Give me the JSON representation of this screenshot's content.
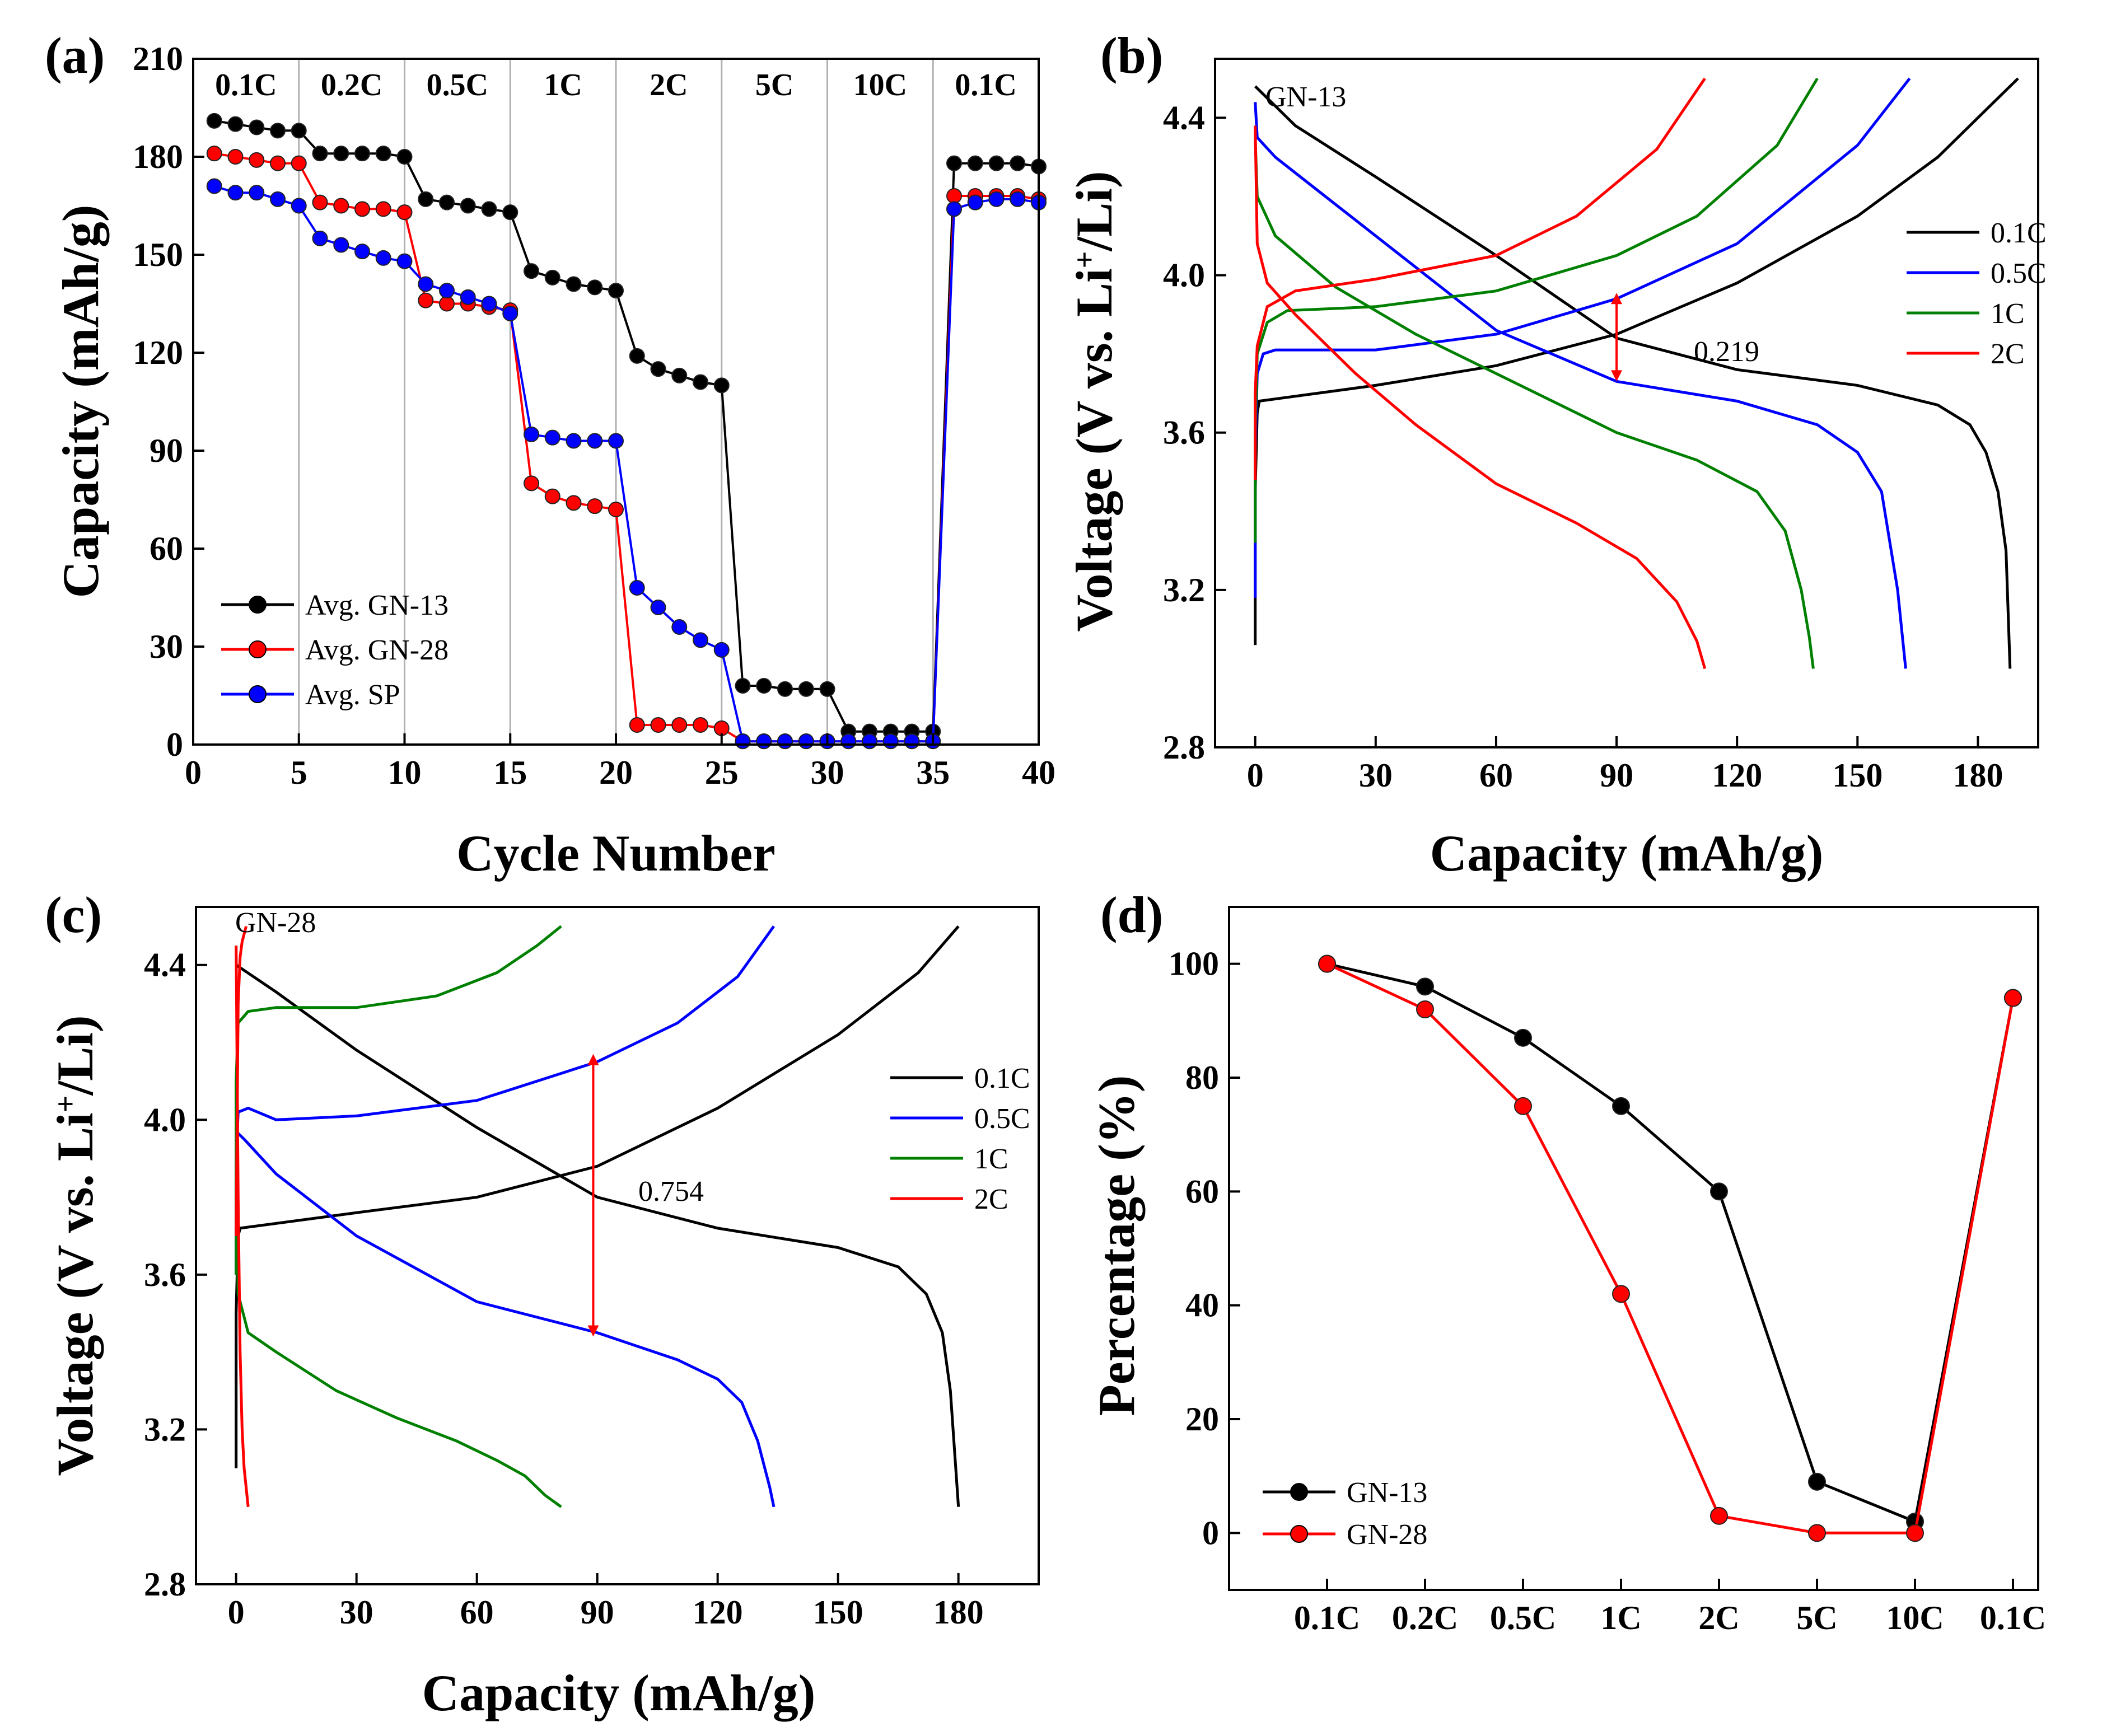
{
  "chart_data": [
    {
      "panel": "(a)",
      "type": "line",
      "xlabel": "Cycle Number",
      "ylabel": "Capacity (mAh/g)",
      "xlim": [
        0,
        40
      ],
      "ylim": [
        0,
        210
      ],
      "xticks": [
        "0",
        "5",
        "10",
        "15",
        "20",
        "25",
        "30",
        "35",
        "40"
      ],
      "yticks": [
        "0",
        "30",
        "60",
        "90",
        "120",
        "150",
        "180",
        "210"
      ],
      "rate_labels": [
        "0.1C",
        "0.2C",
        "0.5C",
        "1C",
        "2C",
        "5C",
        "10C",
        "0.1C"
      ],
      "dividers": [
        5,
        10,
        15,
        20,
        25,
        30,
        35
      ],
      "legend_position": "bottom-left",
      "series": [
        {
          "name": "Avg. GN-13",
          "color": "#000000",
          "x": [
            1,
            2,
            3,
            4,
            5,
            6,
            7,
            8,
            9,
            10,
            11,
            12,
            13,
            14,
            15,
            16,
            17,
            18,
            19,
            20,
            21,
            22,
            23,
            24,
            25,
            26,
            27,
            28,
            29,
            30,
            31,
            32,
            33,
            34,
            35,
            36,
            37,
            38,
            39,
            40
          ],
          "y": [
            191,
            190,
            189,
            188,
            188,
            181,
            181,
            181,
            181,
            180,
            167,
            166,
            165,
            164,
            163,
            145,
            143,
            141,
            140,
            139,
            119,
            115,
            113,
            111,
            110,
            18,
            18,
            17,
            17,
            17,
            4,
            4,
            4,
            4,
            4,
            178,
            178,
            178,
            178,
            177
          ]
        },
        {
          "name": "Avg. GN-28",
          "color": "#ff0000",
          "x": [
            1,
            2,
            3,
            4,
            5,
            6,
            7,
            8,
            9,
            10,
            11,
            12,
            13,
            14,
            15,
            16,
            17,
            18,
            19,
            20,
            21,
            22,
            23,
            24,
            25,
            26,
            27,
            28,
            29,
            30,
            31,
            32,
            33,
            34,
            35,
            36,
            37,
            38,
            39,
            40
          ],
          "y": [
            181,
            180,
            179,
            178,
            178,
            166,
            165,
            164,
            164,
            163,
            136,
            135,
            135,
            134,
            133,
            80,
            76,
            74,
            73,
            72,
            6,
            6,
            6,
            6,
            5,
            1,
            1,
            1,
            1,
            1,
            1,
            1,
            1,
            1,
            1,
            168,
            168,
            168,
            168,
            167
          ]
        },
        {
          "name": "Avg. SP",
          "color": "#0000ff",
          "x": [
            1,
            2,
            3,
            4,
            5,
            6,
            7,
            8,
            9,
            10,
            11,
            12,
            13,
            14,
            15,
            16,
            17,
            18,
            19,
            20,
            21,
            22,
            23,
            24,
            25,
            26,
            27,
            28,
            29,
            30,
            31,
            32,
            33,
            34,
            35,
            36,
            37,
            38,
            39,
            40
          ],
          "y": [
            171,
            169,
            169,
            167,
            165,
            155,
            153,
            151,
            149,
            148,
            141,
            139,
            137,
            135,
            132,
            95,
            94,
            93,
            93,
            93,
            48,
            42,
            36,
            32,
            29,
            1,
            1,
            1,
            1,
            1,
            1,
            1,
            1,
            1,
            1,
            164,
            166,
            167,
            167,
            166
          ]
        }
      ]
    },
    {
      "panel": "(b)",
      "type": "line",
      "annotation": "GN-13",
      "gap_label": "0.219",
      "xlabel": "Capacity (mAh/g)",
      "ylabel_prefix": "Voltage (V vs. Li",
      "ylabel_sup": "+",
      "ylabel_suffix": "/Li)",
      "xlim": [
        -10,
        195
      ],
      "ylim": [
        2.8,
        4.55
      ],
      "xticks": [
        "0",
        "30",
        "60",
        "90",
        "120",
        "150",
        "180"
      ],
      "yticks": [
        "2.8",
        "3.2",
        "3.6",
        "4.0",
        "4.4"
      ],
      "legend_position": "right",
      "series": [
        {
          "name": "0.1C",
          "color": "#000000",
          "charge_x": [
            0,
            0,
            0.5,
            1,
            30,
            60,
            90,
            120,
            150,
            170,
            190
          ],
          "charge_y": [
            3.06,
            3.45,
            3.65,
            3.68,
            3.72,
            3.77,
            3.85,
            3.98,
            4.15,
            4.3,
            4.5
          ],
          "discharge_x": [
            0,
            10,
            30,
            60,
            90,
            120,
            150,
            170,
            178,
            182,
            185,
            187,
            188
          ],
          "discharge_y": [
            4.48,
            4.38,
            4.25,
            4.05,
            3.84,
            3.76,
            3.72,
            3.67,
            3.62,
            3.55,
            3.45,
            3.3,
            3.0
          ]
        },
        {
          "name": "0.5C",
          "color": "#0000ff",
          "charge_x": [
            0,
            0,
            0.5,
            2,
            5,
            30,
            60,
            90,
            120,
            150,
            163
          ],
          "charge_y": [
            3.18,
            3.55,
            3.75,
            3.8,
            3.81,
            3.81,
            3.85,
            3.94,
            4.08,
            4.33,
            4.5
          ],
          "discharge_x": [
            0,
            0.5,
            5,
            20,
            40,
            60,
            90,
            120,
            140,
            150,
            156,
            160,
            162
          ],
          "discharge_y": [
            4.44,
            4.35,
            4.3,
            4.18,
            4.02,
            3.86,
            3.73,
            3.68,
            3.62,
            3.55,
            3.45,
            3.2,
            3.0
          ]
        },
        {
          "name": "1C",
          "color": "#008000",
          "charge_x": [
            0,
            0,
            0.5,
            3,
            8,
            30,
            60,
            90,
            110,
            130,
            140
          ],
          "charge_y": [
            3.32,
            3.6,
            3.8,
            3.88,
            3.91,
            3.92,
            3.96,
            4.05,
            4.15,
            4.33,
            4.5
          ],
          "discharge_x": [
            0,
            0.5,
            5,
            20,
            40,
            60,
            90,
            110,
            125,
            132,
            136,
            138,
            139
          ],
          "discharge_y": [
            4.35,
            4.2,
            4.1,
            3.97,
            3.85,
            3.75,
            3.6,
            3.53,
            3.45,
            3.35,
            3.2,
            3.08,
            3.0
          ]
        },
        {
          "name": "2C",
          "color": "#ff0000",
          "charge_x": [
            0,
            0,
            0.5,
            3,
            10,
            30,
            60,
            80,
            100,
            112
          ],
          "charge_y": [
            3.48,
            3.7,
            3.82,
            3.92,
            3.96,
            3.99,
            4.05,
            4.15,
            4.32,
            4.5
          ],
          "discharge_x": [
            0,
            0.5,
            3,
            10,
            25,
            40,
            60,
            80,
            95,
            105,
            110,
            112
          ],
          "discharge_y": [
            4.38,
            4.08,
            3.98,
            3.9,
            3.75,
            3.62,
            3.47,
            3.37,
            3.28,
            3.17,
            3.07,
            3.0
          ]
        }
      ]
    },
    {
      "panel": "(c)",
      "type": "line",
      "annotation": "GN-28",
      "gap_label": "0.754",
      "xlabel": "Capacity (mAh/g)",
      "ylabel_prefix": "Voltage (V vs. Li",
      "ylabel_sup": "+",
      "ylabel_suffix": "/Li)",
      "xlim": [
        -10,
        200
      ],
      "ylim": [
        2.8,
        4.55
      ],
      "xticks": [
        "0",
        "30",
        "60",
        "90",
        "120",
        "150",
        "180"
      ],
      "yticks": [
        "2.8",
        "3.2",
        "3.6",
        "4.0",
        "4.4"
      ],
      "legend_position": "right",
      "series": [
        {
          "name": "0.1C",
          "color": "#000000",
          "charge_x": [
            0,
            0,
            0.5,
            1,
            30,
            60,
            90,
            120,
            150,
            170,
            180
          ],
          "charge_y": [
            3.1,
            3.5,
            3.7,
            3.72,
            3.76,
            3.8,
            3.88,
            4.03,
            4.22,
            4.38,
            4.5
          ],
          "discharge_x": [
            0,
            10,
            30,
            60,
            90,
            120,
            150,
            165,
            172,
            176,
            178,
            179,
            180
          ],
          "discharge_y": [
            4.4,
            4.33,
            4.18,
            3.98,
            3.8,
            3.72,
            3.67,
            3.62,
            3.55,
            3.45,
            3.3,
            3.15,
            3.0
          ]
        },
        {
          "name": "0.5C",
          "color": "#0000ff",
          "charge_x": [
            0,
            0,
            0.5,
            3,
            10,
            30,
            60,
            90,
            110,
            125,
            134
          ],
          "charge_y": [
            3.6,
            3.9,
            4.02,
            4.03,
            4.0,
            4.01,
            4.05,
            4.15,
            4.25,
            4.37,
            4.5
          ],
          "discharge_x": [
            0,
            2,
            10,
            30,
            60,
            90,
            110,
            120,
            126,
            130,
            133,
            134
          ],
          "discharge_y": [
            3.97,
            3.95,
            3.86,
            3.7,
            3.53,
            3.45,
            3.38,
            3.33,
            3.27,
            3.17,
            3.05,
            3.0
          ]
        },
        {
          "name": "1C",
          "color": "#008000",
          "charge_x": [
            0,
            0,
            0.5,
            3,
            10,
            30,
            50,
            65,
            75,
            81
          ],
          "charge_y": [
            3.6,
            4.1,
            4.25,
            4.28,
            4.29,
            4.29,
            4.32,
            4.38,
            4.45,
            4.5
          ],
          "discharge_x": [
            0,
            0.5,
            3,
            10,
            25,
            40,
            55,
            65,
            72,
            77,
            81
          ],
          "discharge_y": [
            3.85,
            3.55,
            3.45,
            3.4,
            3.3,
            3.23,
            3.17,
            3.12,
            3.08,
            3.03,
            3.0
          ]
        },
        {
          "name": "2C",
          "color": "#ff0000",
          "charge_x": [
            0,
            0.5,
            1,
            1.5,
            2,
            2.5
          ],
          "charge_y": [
            3.7,
            4.3,
            4.42,
            4.46,
            4.48,
            4.5
          ],
          "discharge_x": [
            0,
            0.5,
            1,
            1.5,
            2,
            2.5,
            3
          ],
          "discharge_y": [
            4.45,
            3.8,
            3.4,
            3.2,
            3.1,
            3.05,
            3.0
          ]
        }
      ]
    },
    {
      "panel": "(d)",
      "type": "line",
      "xlabel": "",
      "ylabel": "Percentage (%)",
      "ylim": [
        -10,
        110
      ],
      "categories": [
        "0.1C",
        "0.2C",
        "0.5C",
        "1C",
        "2C",
        "5C",
        "10C",
        "0.1C"
      ],
      "yticks": [
        "0",
        "20",
        "40",
        "60",
        "80",
        "100"
      ],
      "legend_position": "bottom-left",
      "series": [
        {
          "name": "GN-13",
          "color": "#000000",
          "values": [
            100,
            96,
            87,
            75,
            60,
            9,
            2,
            94
          ]
        },
        {
          "name": "GN-28",
          "color": "#ff0000",
          "values": [
            100,
            92,
            75,
            42,
            3,
            0,
            0,
            94
          ]
        }
      ]
    }
  ]
}
